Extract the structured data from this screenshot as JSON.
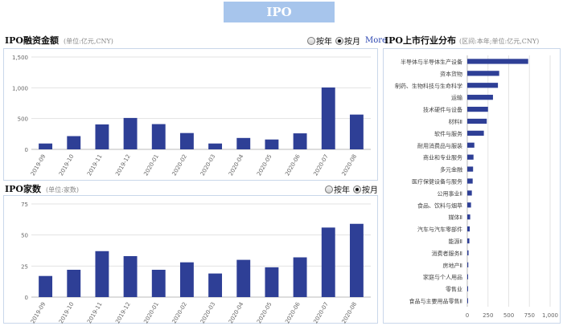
{
  "header": {
    "title": "IPO"
  },
  "amount_section": {
    "title": "IPO融资金额",
    "unit": "(单位:亿元,CNY)",
    "toggle": {
      "yearly": "按年",
      "monthly": "按月",
      "selected": "monthly"
    },
    "more": "More"
  },
  "count_section": {
    "title": "IPO家数",
    "unit": "(单位:家数)",
    "toggle": {
      "yearly": "按年",
      "monthly": "按月",
      "selected": "monthly"
    }
  },
  "industry_section": {
    "title": "IPO上市行业分布",
    "unit": "(区间:本年;单位:亿元,CNY)"
  },
  "colors": {
    "bar": "#2e3f96",
    "title_bg": "#a7c5ec",
    "panel_border": "#c9d7ea",
    "grid": "#e3e3e3"
  },
  "chart_data": [
    {
      "type": "bar",
      "categories": [
        "2019-09",
        "2019-10",
        "2019-11",
        "2019-12",
        "2020-01",
        "2020-02",
        "2020-03",
        "2020-04",
        "2020-05",
        "2020-06",
        "2020-07",
        "2020-08"
      ],
      "values": [
        95,
        215,
        405,
        510,
        410,
        265,
        95,
        185,
        160,
        260,
        1005,
        565
      ],
      "ylim": [
        0,
        1500
      ],
      "yticks": [
        "0",
        "500",
        "1,000",
        "1,500"
      ],
      "ytick_values": [
        0,
        500,
        1000,
        1500
      ],
      "grid": true
    },
    {
      "type": "bar",
      "categories": [
        "2019-09",
        "2019-10",
        "2019-11",
        "2019-12",
        "2020-01",
        "2020-02",
        "2020-03",
        "2020-04",
        "2020-05",
        "2020-06",
        "2020-07",
        "2020-08"
      ],
      "values": [
        17,
        22,
        37,
        33,
        22,
        28,
        19,
        30,
        24,
        32,
        56,
        59
      ],
      "ylim": [
        0,
        75
      ],
      "yticks": [
        "0",
        "25",
        "50",
        "75"
      ],
      "ytick_values": [
        0,
        25,
        50,
        75
      ],
      "grid": true
    },
    {
      "type": "bar",
      "orientation": "horizontal",
      "categories": [
        "半导体与半导体生产设备",
        "资本货物",
        "制药、生物科技与生命科学",
        "运输",
        "技术硬件与设备",
        "材料Ⅱ",
        "软件与服务",
        "耐用消费品与服装",
        "商业和专业服务",
        "多元金融",
        "医疗保健设备与服务",
        "公用事业Ⅱ",
        "食品、饮料与烟草",
        "媒体Ⅱ",
        "汽车与汽车零部件",
        "能源Ⅱ",
        "消费者服务Ⅱ",
        "房地产Ⅱ",
        "家庭与个人用品",
        "零售业",
        "食品与主要用品零售Ⅱ"
      ],
      "values": [
        735,
        385,
        370,
        310,
        250,
        235,
        200,
        85,
        75,
        70,
        65,
        55,
        45,
        35,
        30,
        25,
        15,
        12,
        8,
        4,
        3
      ],
      "xlim": [
        0,
        1000
      ],
      "xticks": [
        "0",
        "250",
        "500",
        "750",
        "1,000"
      ],
      "xtick_values": [
        0,
        250,
        500,
        750,
        1000
      ],
      "grid": true
    }
  ]
}
